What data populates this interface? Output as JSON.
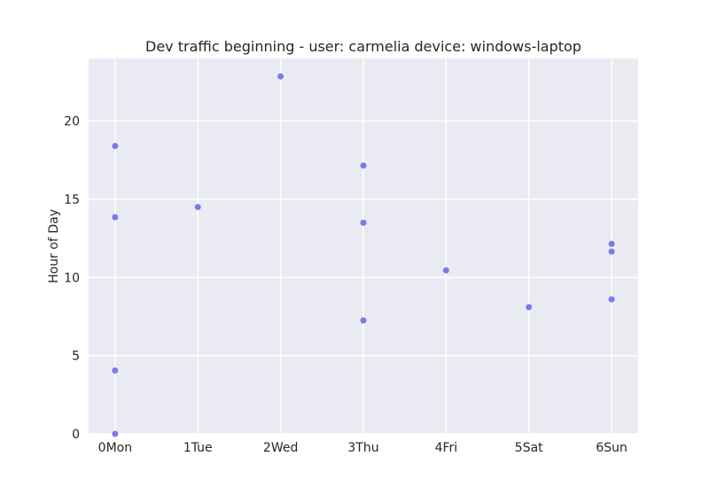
{
  "chart_data": {
    "type": "scatter",
    "title": "Dev traffic beginning - user: carmelia device: windows-laptop",
    "xlabel": "",
    "ylabel": "Hour of Day",
    "categories": [
      "0Mon",
      "1Tue",
      "2Wed",
      "3Thu",
      "4Fri",
      "5Sat",
      "6Sun"
    ],
    "xlim": [
      -0.32,
      6.32
    ],
    "ylim": [
      0,
      24
    ],
    "yticks": [
      0,
      5,
      10,
      15,
      20
    ],
    "grid": true,
    "colors": {
      "background": "#eaeaf2",
      "grid": "#ffffff",
      "point": "#6c6cf0"
    },
    "points": [
      {
        "x": 0,
        "y": 18.4
      },
      {
        "x": 0,
        "y": 13.85
      },
      {
        "x": 0,
        "y": 4.05
      },
      {
        "x": 0,
        "y": 0.0
      },
      {
        "x": 1,
        "y": 14.5
      },
      {
        "x": 2,
        "y": 22.85
      },
      {
        "x": 3,
        "y": 17.15
      },
      {
        "x": 3,
        "y": 13.5
      },
      {
        "x": 3,
        "y": 7.25
      },
      {
        "x": 4,
        "y": 10.45
      },
      {
        "x": 5,
        "y": 8.1
      },
      {
        "x": 6,
        "y": 12.15
      },
      {
        "x": 6,
        "y": 11.65
      },
      {
        "x": 6,
        "y": 8.6
      }
    ]
  }
}
